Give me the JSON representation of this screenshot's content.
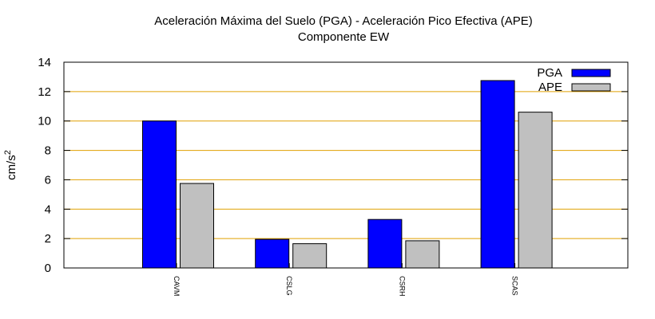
{
  "chart_data": {
    "type": "bar",
    "title_line1": "Aceleración Máxima del Suelo (PGA) -  Aceleración Pico Efectiva (APE)",
    "title_line2": "Componente EW",
    "ylabel_base": "cm/s",
    "ylabel_exp": "2",
    "xlabel": "",
    "categories": [
      "CAVM",
      "CSLG",
      "CSRH",
      "SCAS"
    ],
    "series": [
      {
        "name": "PGA",
        "values": [
          10.0,
          1.95,
          3.3,
          12.75
        ],
        "color": "#0000ff"
      },
      {
        "name": "APE",
        "values": [
          5.75,
          1.65,
          1.85,
          10.6
        ],
        "color": "#c0c0c0"
      }
    ],
    "ylim": [
      0,
      14
    ],
    "yticks": [
      "0",
      "2",
      "4",
      "6",
      "8",
      "10",
      "12",
      "14"
    ],
    "grid": true,
    "grid_color": "#e0a000",
    "legend_position": "top-right"
  }
}
